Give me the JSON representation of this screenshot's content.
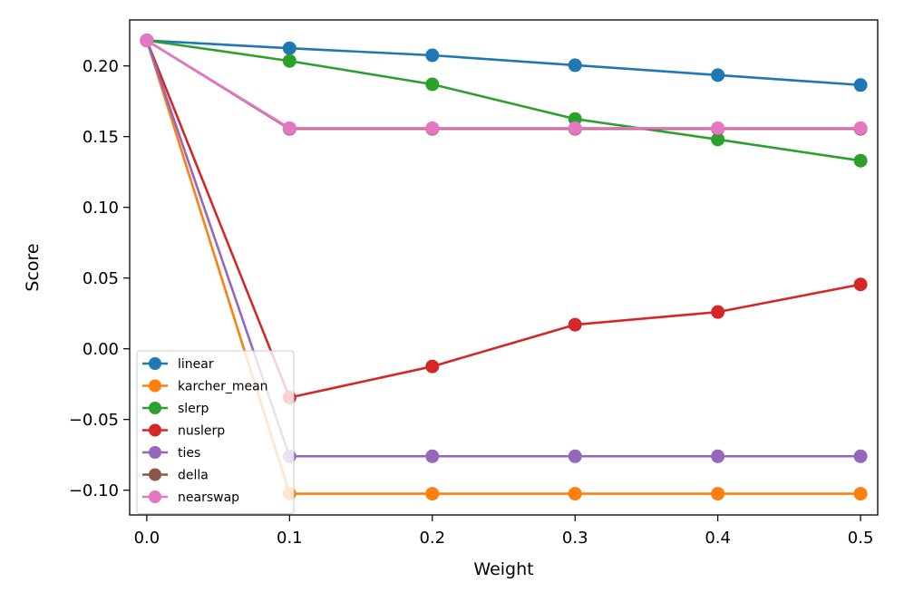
{
  "chart_data": {
    "type": "line",
    "title": "",
    "xlabel": "Weight",
    "ylabel": "Score",
    "x": [
      0.0,
      0.1,
      0.2,
      0.3,
      0.4,
      0.5
    ],
    "xlim": [
      -0.012,
      0.512
    ],
    "ylim": [
      -0.1175,
      0.2325
    ],
    "xticks": [
      0.0,
      0.1,
      0.2,
      0.3,
      0.4,
      0.5
    ],
    "xtick_labels": [
      "0.0",
      "0.1",
      "0.2",
      "0.3",
      "0.4",
      "0.5"
    ],
    "yticks": [
      -0.1,
      -0.05,
      0.0,
      0.05,
      0.1,
      0.15,
      0.2
    ],
    "ytick_labels": [
      "−0.10",
      "−0.05",
      "0.00",
      "0.05",
      "0.10",
      "0.15",
      "0.20"
    ],
    "grid": false,
    "legend_position": "lower-left",
    "series": [
      {
        "name": "linear",
        "color": "#1f77b4",
        "values": [
          0.218,
          0.2125,
          0.2075,
          0.2005,
          0.1935,
          0.1865
        ]
      },
      {
        "name": "karcher_mean",
        "color": "#ff7f0e",
        "values": [
          0.218,
          -0.1025,
          -0.1025,
          -0.1025,
          -0.1025,
          -0.1025
        ]
      },
      {
        "name": "slerp",
        "color": "#2ca02c",
        "values": [
          0.218,
          0.2035,
          0.187,
          0.1625,
          0.148,
          0.133
        ]
      },
      {
        "name": "nuslerp",
        "color": "#d62728",
        "values": [
          0.218,
          -0.0345,
          -0.0125,
          0.017,
          0.026,
          0.0455
        ]
      },
      {
        "name": "ties",
        "color": "#9467bd",
        "values": [
          0.218,
          -0.076,
          -0.076,
          -0.076,
          -0.076,
          -0.076
        ]
      },
      {
        "name": "della",
        "color": "#8c564b",
        "values": [
          0.218,
          0.1555,
          0.1555,
          0.1555,
          0.1555,
          0.1555
        ]
      },
      {
        "name": "nearswap",
        "color": "#e377c2",
        "values": [
          0.218,
          0.156,
          0.156,
          0.156,
          0.156,
          0.156
        ]
      }
    ]
  }
}
